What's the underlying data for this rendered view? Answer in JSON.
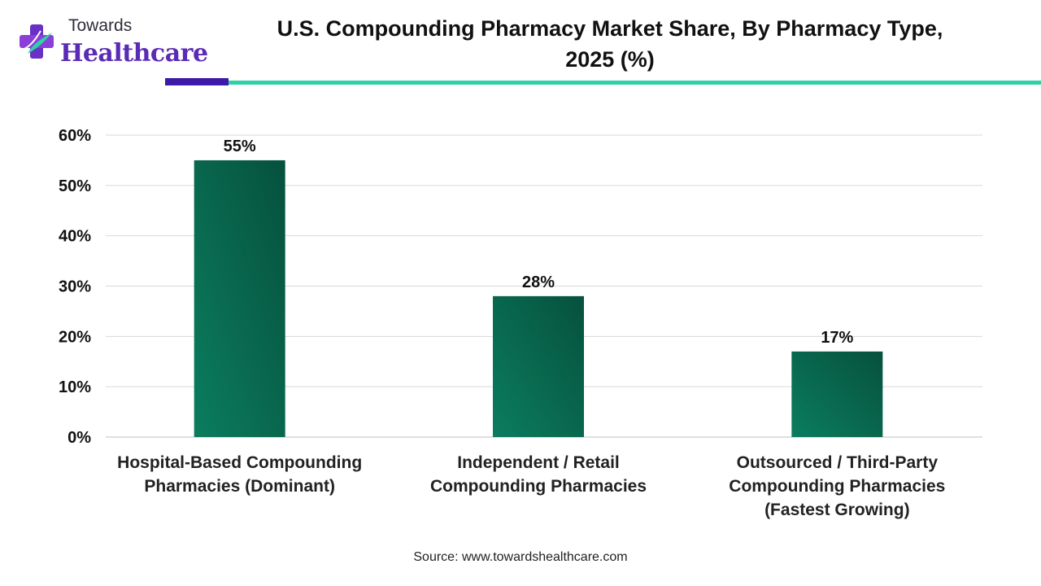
{
  "logo": {
    "top": "Towards",
    "bottom": "Healthcare"
  },
  "title_line1": "U.S. Compounding Pharmacy Market Share, By Pharmacy Type,",
  "title_line2": "2025 (%)",
  "source": "Source: www.towardshealthcare.com",
  "colors": {
    "bar": "#0a7a5c",
    "bar_dark": "#06513d",
    "accent_purple": "#3d1aa8",
    "accent_teal": "#2fd1a7"
  },
  "chart_data": {
    "type": "bar",
    "categories": [
      [
        "Hospital-Based Compounding",
        "Pharmacies (Dominant)"
      ],
      [
        "Independent / Retail",
        "Compounding Pharmacies"
      ],
      [
        "Outsourced / Third-Party",
        "Compounding Pharmacies",
        "(Fastest Growing)"
      ]
    ],
    "values": [
      55,
      28,
      17
    ],
    "data_labels": [
      "55%",
      "28%",
      "17%"
    ],
    "yticks": [
      "0%",
      "10%",
      "20%",
      "30%",
      "40%",
      "50%",
      "60%"
    ],
    "ylim": [
      0,
      60
    ],
    "grid": true
  }
}
